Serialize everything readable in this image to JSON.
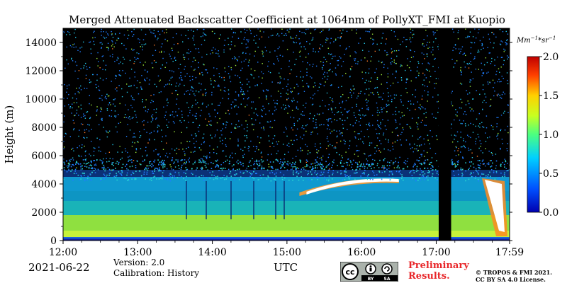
{
  "chart_data": {
    "type": "heatmap",
    "title": "Merged Attenuated Backscatter Coefficient at 1064nm of PollyXT_FMI at Kuopio",
    "xlabel": "UTC",
    "ylabel": "Height (m)",
    "x_range": [
      "12:00",
      "17:59"
    ],
    "x_ticks": [
      "12:00",
      "13:00",
      "14:00",
      "15:00",
      "16:00",
      "17:00",
      "17:59"
    ],
    "y_range": [
      0,
      15000
    ],
    "y_ticks": [
      0,
      2000,
      4000,
      6000,
      8000,
      10000,
      12000,
      14000
    ],
    "colorbar": {
      "unit_label": "Mm^{-1}*sr^{-1}",
      "unit_main": "Mm",
      "unit_exp1": "−1",
      "unit_mid": "*sr",
      "unit_exp2": "−1",
      "range": [
        0.0,
        2.0
      ],
      "ticks": [
        "0.0",
        "0.5",
        "1.0",
        "1.5",
        "2.0"
      ],
      "colormap": "jet"
    },
    "features": {
      "boundary_layer_top_m": 1800,
      "aerosol_layer_top_m": 4500,
      "cloud_layer_height_m": [
        3400,
        4300
      ],
      "cloud_layer_time": [
        "15:10",
        "16:30"
      ],
      "data_gap_time": [
        "17:02",
        "17:12"
      ],
      "data_gap_label": ""
    }
  },
  "footer": {
    "date": "2021-06-22",
    "version": "Version: 2.0",
    "calibration": "Calibration: History",
    "xlabel": "UTC",
    "preliminary_line1": "Preliminary",
    "preliminary_line2": "Results.",
    "copyright_line1": "© TROPOS & FMI 2021.",
    "copyright_line2": "CC BY SA 4.0 License."
  },
  "license_badge": {
    "icon": "cc-by-sa-icon",
    "by": "BY",
    "sa": "SA"
  },
  "colors": {
    "background": "#000000",
    "noise_blue": "#1565ff",
    "boundary_green": "#9be53a",
    "cloud_white": "#ffffff",
    "preliminary_red": "#e8272a"
  }
}
